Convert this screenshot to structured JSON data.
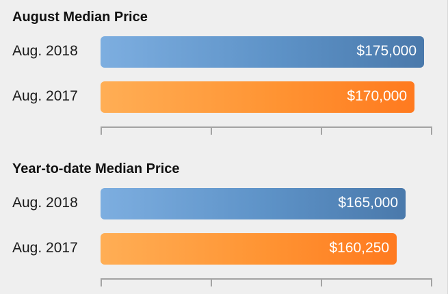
{
  "chart_data": [
    {
      "type": "bar",
      "orientation": "horizontal",
      "title": "August Median Price",
      "categories": [
        "Aug. 2018",
        "Aug. 2017"
      ],
      "values": [
        175000,
        170000
      ],
      "value_labels": [
        "$175,000",
        "$170,000"
      ],
      "colors": [
        "#5d92c7",
        "#ff8c2e"
      ],
      "xlim": [
        0,
        175000
      ],
      "grid": false
    },
    {
      "type": "bar",
      "orientation": "horizontal",
      "title": "Year-to-date Median Price",
      "categories": [
        "Aug. 2018",
        "Aug. 2017"
      ],
      "values": [
        165000,
        160250
      ],
      "value_labels": [
        "$165,000",
        "$160,250"
      ],
      "colors": [
        "#5d92c7",
        "#ff8c2e"
      ],
      "xlim": [
        0,
        175000
      ],
      "grid": false
    }
  ]
}
